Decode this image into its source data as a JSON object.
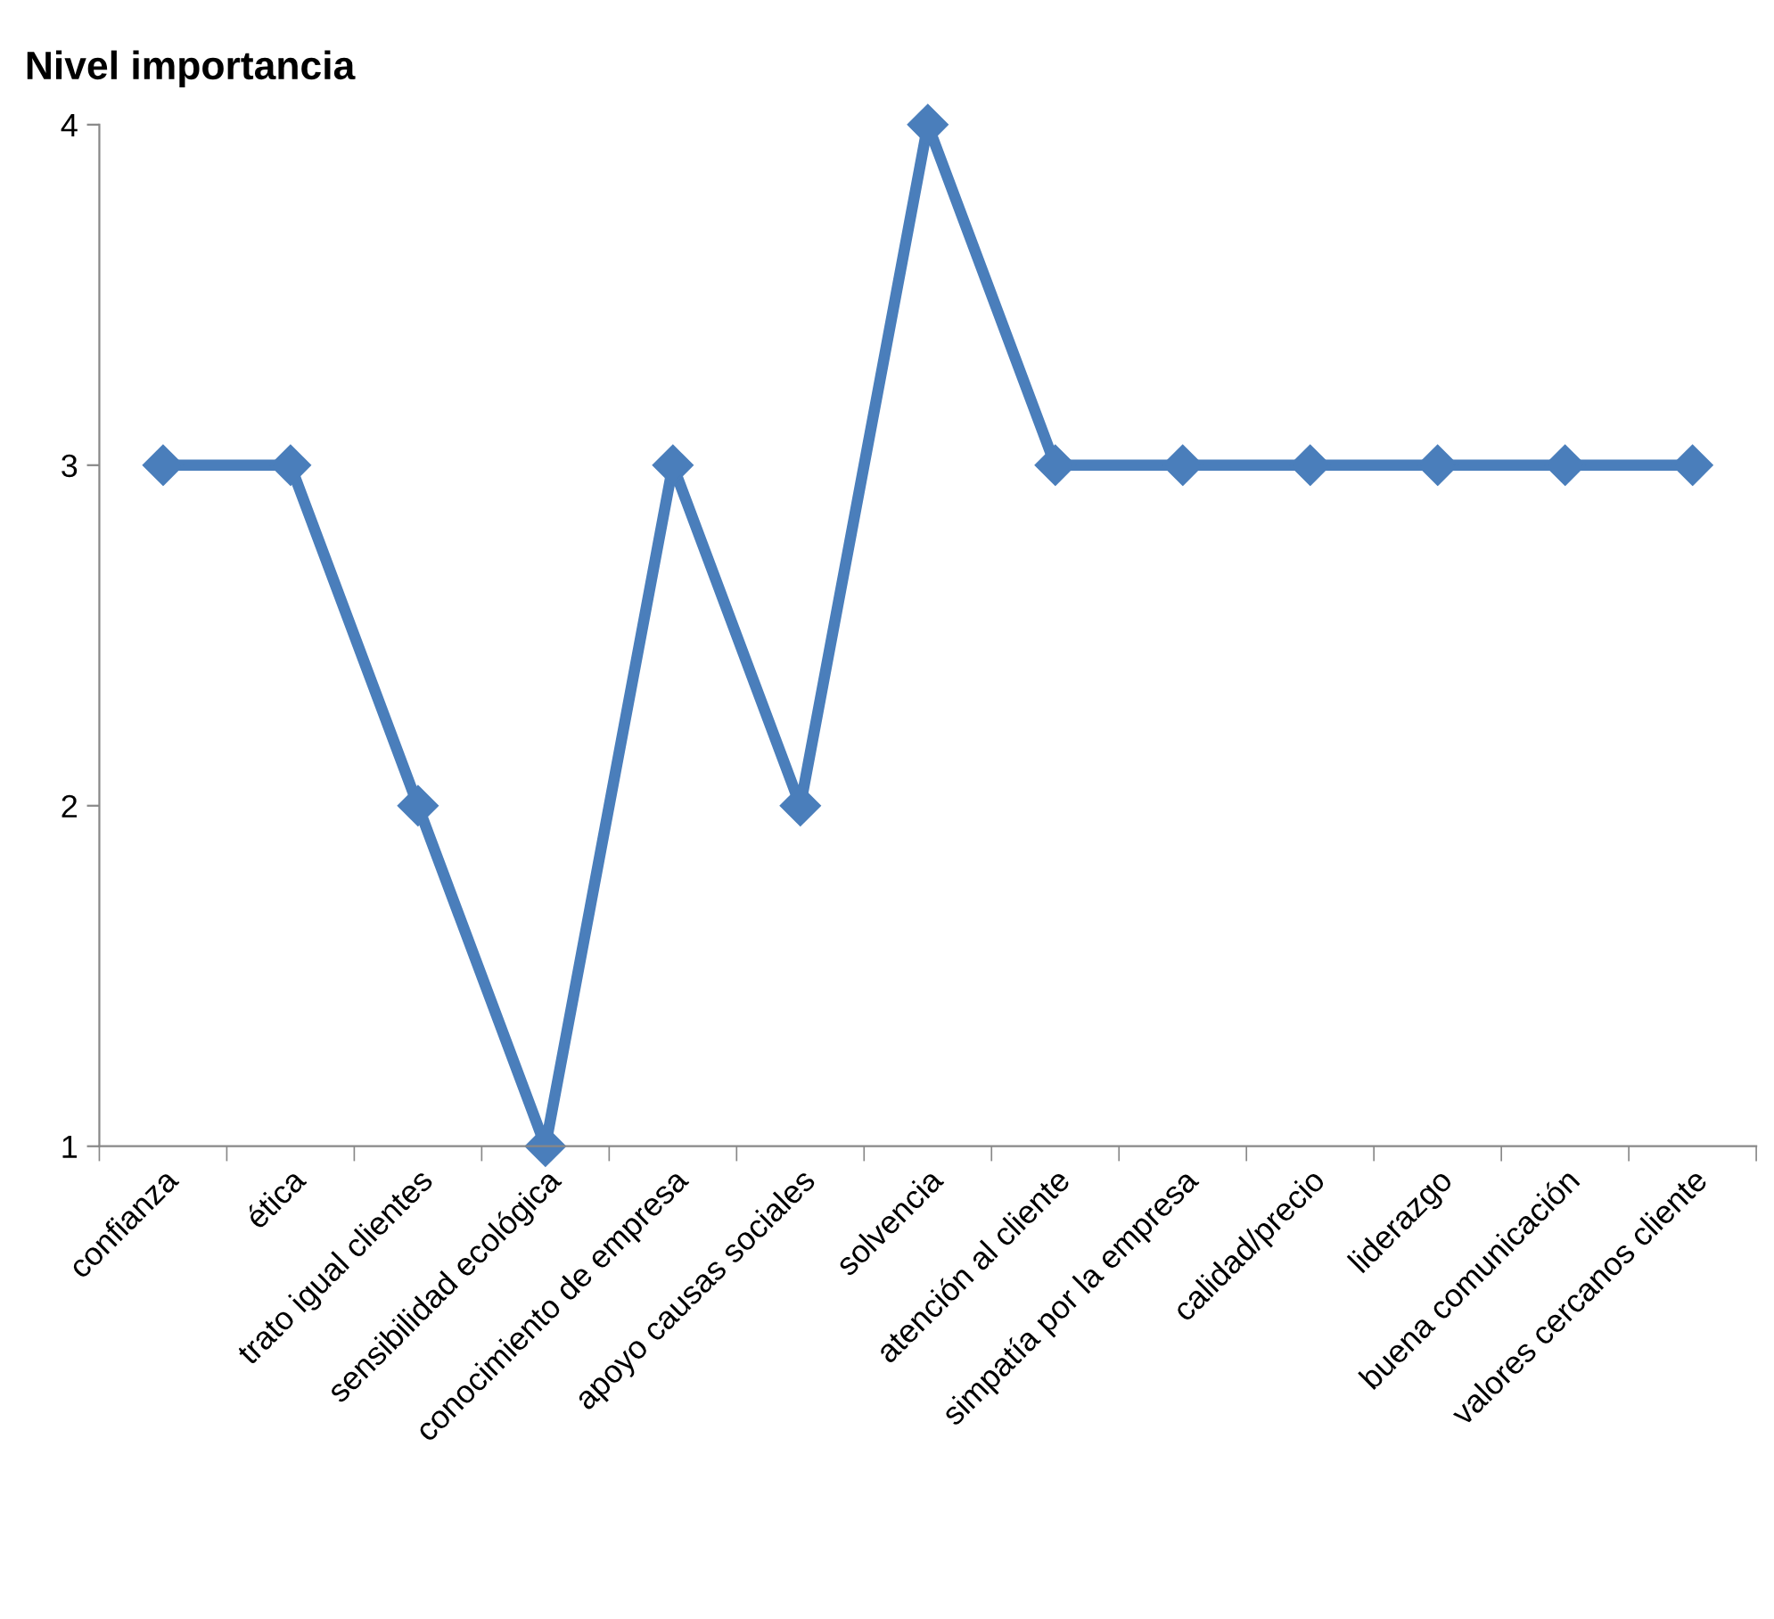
{
  "chart_data": {
    "type": "line",
    "title": "Nivel importancia",
    "categories": [
      "confianza",
      "ética",
      "trato igual clientes",
      "sensibilidad ecológica",
      "conocimiento de empresa",
      "apoyo causas sociales",
      "solvencia",
      "atención al cliente",
      "simpatía por la empresa",
      "calidad/precio",
      "liderazgo",
      "buena comunicación",
      "valores cercanos cliente"
    ],
    "series": [
      {
        "color": "#4a7ebb",
        "values": [
          3,
          3,
          2,
          1,
          3,
          2,
          4,
          3,
          3,
          3,
          3,
          3,
          3
        ]
      }
    ],
    "ylim": [
      1,
      4
    ],
    "yticks": [
      1,
      2,
      3,
      4
    ],
    "marker": "diamond",
    "line_style": "solid",
    "grid": false,
    "legend": false
  }
}
